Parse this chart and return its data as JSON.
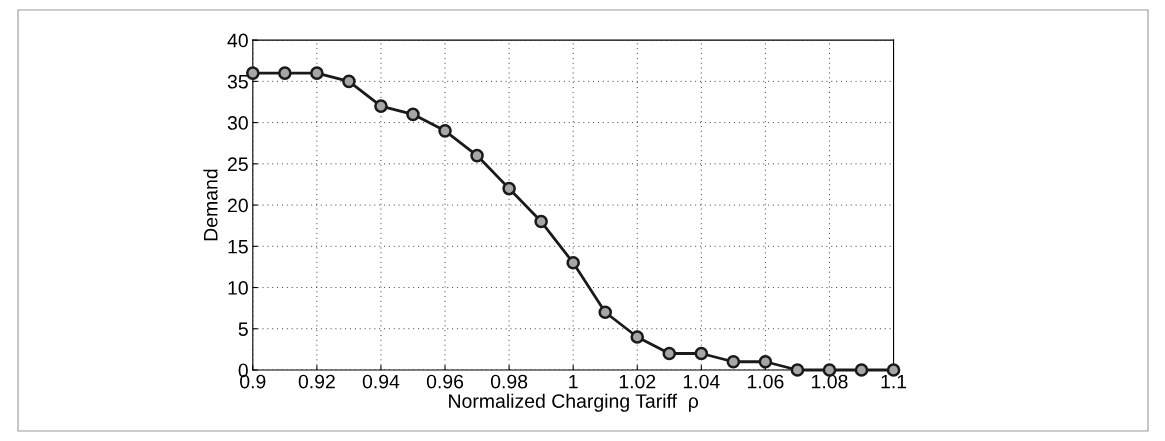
{
  "chart_data": {
    "type": "line",
    "xlabel": "Normalized Charging Tariff  ρ",
    "ylabel": "Demand",
    "x": [
      0.9,
      0.91,
      0.92,
      0.93,
      0.94,
      0.95,
      0.96,
      0.97,
      0.98,
      0.99,
      1,
      1.01,
      1.02,
      1.03,
      1.04,
      1.05,
      1.06,
      1.07,
      1.08,
      1.09,
      1.1
    ],
    "series": [
      {
        "color": "#1a1a1a",
        "values": [
          36,
          36,
          36,
          35,
          32,
          31,
          29,
          26,
          22,
          18,
          13,
          7,
          4,
          2,
          2,
          1,
          1,
          0,
          0,
          0,
          0
        ]
      }
    ],
    "xlim": [
      0.9,
      1.1
    ],
    "xticks": [
      0.9,
      0.92,
      0.94,
      0.96,
      0.98,
      1,
      1.02,
      1.04,
      1.06,
      1.08,
      1.1
    ],
    "ylim": [
      0,
      40
    ],
    "yticks": [
      0,
      5,
      10,
      15,
      20,
      25,
      30,
      35,
      40
    ],
    "grid": true,
    "marker": "circle",
    "line_style": "solid"
  }
}
